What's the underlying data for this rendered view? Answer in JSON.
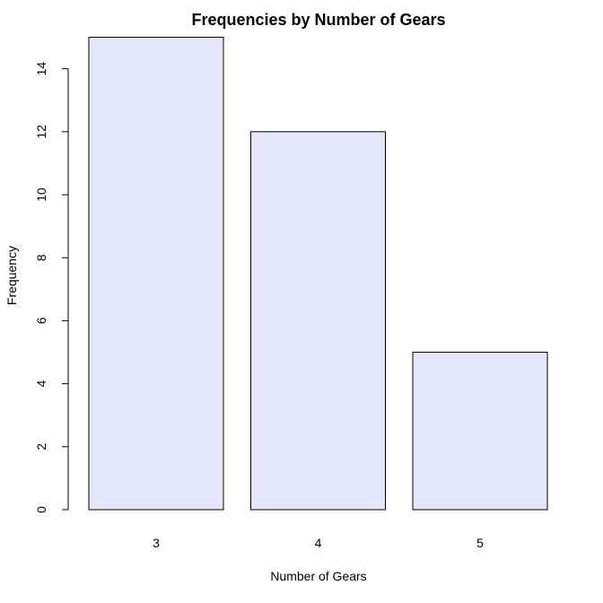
{
  "chart_data": {
    "type": "bar",
    "title": "Frequencies by Number of Gears",
    "xlabel": "Number of Gears",
    "ylabel": "Frequency",
    "categories": [
      "3",
      "4",
      "5"
    ],
    "values": [
      15,
      12,
      5
    ],
    "ylim": [
      0,
      14
    ],
    "yticks": [
      0,
      2,
      4,
      6,
      8,
      10,
      12,
      14
    ],
    "bar_color": "#e6e6fa",
    "grid": false,
    "legend": "none"
  }
}
